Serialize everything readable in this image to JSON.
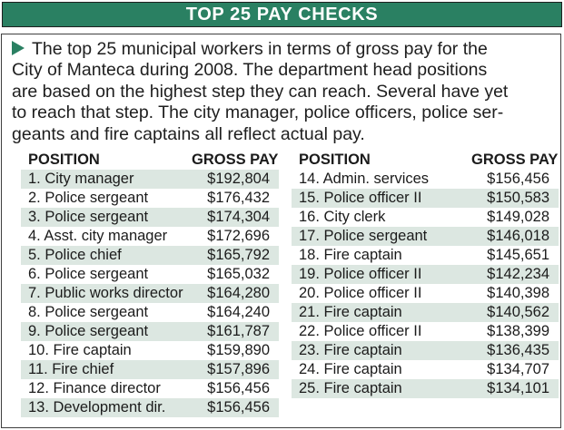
{
  "title_bar": {
    "title": "TOP 25 PAY CHECKS"
  },
  "intro": {
    "lines": [
      "The top 25 municipal workers in terms of gross pay for the",
      "City of Manteca during 2008. The department head positions",
      "are based on the highest step they can reach. Several have yet",
      "to reach that step. The city manager, police officers, police ser-",
      "geants and fire captains all reflect actual pay."
    ]
  },
  "left_table": {
    "header": {
      "position": "POSITION",
      "gross_pay": "GROSS PAY"
    },
    "rows": [
      {
        "label": "1. City manager",
        "pay": "$192,804"
      },
      {
        "label": "2. Police sergeant",
        "pay": "$176,432"
      },
      {
        "label": "3. Police sergeant",
        "pay": "$174,304"
      },
      {
        "label": "4. Asst. city manager",
        "pay": "$172,696"
      },
      {
        "label": "5. Police chief",
        "pay": "$165,792"
      },
      {
        "label": "6. Police sergeant",
        "pay": "$165,032"
      },
      {
        "label": "7. Public works director",
        "pay": "$164,280"
      },
      {
        "label": "8. Police sergeant",
        "pay": "$164,240"
      },
      {
        "label": "9. Police sergeant",
        "pay": "$161,787"
      },
      {
        "label": "10. Fire captain",
        "pay": "$159,890"
      },
      {
        "label": "11. Fire chief",
        "pay": "$157,896"
      },
      {
        "label": "12. Finance director",
        "pay": "$156,456"
      },
      {
        "label": "13. Development dir.",
        "pay": "$156,456"
      }
    ]
  },
  "right_table": {
    "header": {
      "position": "POSITION",
      "gross_pay": "GROSS PAY"
    },
    "rows": [
      {
        "label": "14. Admin. services",
        "pay": "$156,456"
      },
      {
        "label": "15. Police officer II",
        "pay": "$150,583"
      },
      {
        "label": "16. City clerk",
        "pay": "$149,028"
      },
      {
        "label": "17. Police sergeant",
        "pay": "$146,018"
      },
      {
        "label": "18. Fire captain",
        "pay": "$145,651"
      },
      {
        "label": "19. Police officer II",
        "pay": "$142,234"
      },
      {
        "label": "20. Police officer II",
        "pay": "$140,398"
      },
      {
        "label": "21. Fire captain",
        "pay": "$140,562"
      },
      {
        "label": "22. Police officer II",
        "pay": "$138,399"
      },
      {
        "label": "23. Fire captain",
        "pay": "$136,435"
      },
      {
        "label": "24. Fire captain",
        "pay": "$134,707"
      },
      {
        "label": "25. Fire captain",
        "pay": "$134,101"
      }
    ]
  },
  "colors": {
    "title_bar_green": "#2A8062",
    "bullet_green": "#2A8062",
    "row_shade": "#DCE7E1",
    "border": "#3F3F3F"
  },
  "chart_data": {
    "type": "table",
    "title": "TOP 25 PAY CHECKS",
    "columns": [
      "POSITION",
      "GROSS PAY"
    ],
    "rows": [
      {
        "rank": 1,
        "position": "City manager",
        "gross_pay": 192804
      },
      {
        "rank": 2,
        "position": "Police sergeant",
        "gross_pay": 176432
      },
      {
        "rank": 3,
        "position": "Police sergeant",
        "gross_pay": 174304
      },
      {
        "rank": 4,
        "position": "Asst. city manager",
        "gross_pay": 172696
      },
      {
        "rank": 5,
        "position": "Police chief",
        "gross_pay": 165792
      },
      {
        "rank": 6,
        "position": "Police sergeant",
        "gross_pay": 165032
      },
      {
        "rank": 7,
        "position": "Public works director",
        "gross_pay": 164280
      },
      {
        "rank": 8,
        "position": "Police sergeant",
        "gross_pay": 164240
      },
      {
        "rank": 9,
        "position": "Police sergeant",
        "gross_pay": 161787
      },
      {
        "rank": 10,
        "position": "Fire captain",
        "gross_pay": 159890
      },
      {
        "rank": 11,
        "position": "Fire chief",
        "gross_pay": 157896
      },
      {
        "rank": 12,
        "position": "Finance director",
        "gross_pay": 156456
      },
      {
        "rank": 13,
        "position": "Development dir.",
        "gross_pay": 156456
      },
      {
        "rank": 14,
        "position": "Admin. services",
        "gross_pay": 156456
      },
      {
        "rank": 15,
        "position": "Police officer II",
        "gross_pay": 150583
      },
      {
        "rank": 16,
        "position": "City clerk",
        "gross_pay": 149028
      },
      {
        "rank": 17,
        "position": "Police sergeant",
        "gross_pay": 146018
      },
      {
        "rank": 18,
        "position": "Fire captain",
        "gross_pay": 145651
      },
      {
        "rank": 19,
        "position": "Police officer II",
        "gross_pay": 142234
      },
      {
        "rank": 20,
        "position": "Police officer II",
        "gross_pay": 140398
      },
      {
        "rank": 21,
        "position": "Fire captain",
        "gross_pay": 140562
      },
      {
        "rank": 22,
        "position": "Police officer II",
        "gross_pay": 138399
      },
      {
        "rank": 23,
        "position": "Fire captain",
        "gross_pay": 136435
      },
      {
        "rank": 24,
        "position": "Fire captain",
        "gross_pay": 134707
      },
      {
        "rank": 25,
        "position": "Fire captain",
        "gross_pay": 134101
      }
    ]
  }
}
